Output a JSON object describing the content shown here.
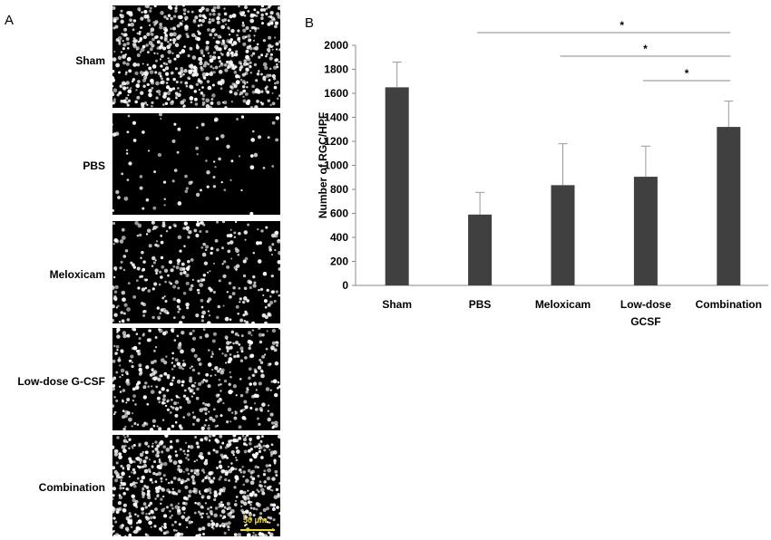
{
  "panel_a": {
    "letter": "A",
    "rows": [
      {
        "label": "Sham",
        "density": 1.0
      },
      {
        "label": "PBS",
        "density": 0.12
      },
      {
        "label": "Meloxicam",
        "density": 0.45
      },
      {
        "label": "Low-dose G-CSF",
        "density": 0.6
      },
      {
        "label": "Combination",
        "density": 0.95
      }
    ],
    "scale_bar": "50 μm",
    "colors": {
      "nuclei": "#ffffff",
      "background": "#000000",
      "scale_bar": "#f0e000"
    }
  },
  "panel_b": {
    "letter": "B",
    "significance_marker": "*"
  },
  "chart_data": {
    "type": "bar",
    "categories": [
      "Sham",
      "PBS",
      "Meloxicam",
      "Low-dose\nGCSF",
      "Combination"
    ],
    "values": [
      1650,
      590,
      835,
      905,
      1320
    ],
    "errors": [
      210,
      185,
      345,
      255,
      215
    ],
    "ylabel": "Number of RGC/HPF",
    "xlabel": "",
    "ylim": [
      0,
      2000
    ],
    "yticks": [
      0,
      200,
      400,
      600,
      800,
      1000,
      1200,
      1400,
      1600,
      1800,
      2000
    ],
    "bar_color": "#404040",
    "significance": [
      {
        "from": "PBS",
        "to": "Combination",
        "label": "*"
      },
      {
        "from": "Meloxicam",
        "to": "Combination",
        "label": "*"
      },
      {
        "from": "Low-dose\nGCSF",
        "to": "Combination",
        "label": "*"
      }
    ]
  }
}
